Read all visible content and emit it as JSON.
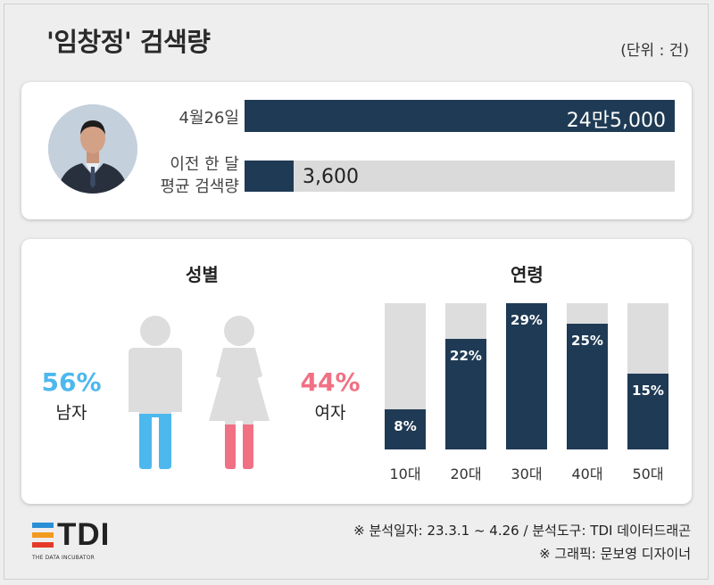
{
  "header": {
    "title": "'임창정' 검색량",
    "unit": "(단위 : 건)"
  },
  "search_volume": {
    "rows": [
      {
        "label_lines": [
          "4월26일"
        ],
        "value": 245000,
        "value_label": "24만5,000"
      },
      {
        "label_lines": [
          "이전 한 달",
          "평균 검색량"
        ],
        "value": 3600,
        "value_label": "3,600"
      }
    ]
  },
  "gender": {
    "title": "성별",
    "male": {
      "percent": 56,
      "percent_label": "56%",
      "label": "남자",
      "color": "#4db8ee"
    },
    "female": {
      "percent": 44,
      "percent_label": "44%",
      "label": "여자",
      "color": "#f07184"
    }
  },
  "age": {
    "title": "연령"
  },
  "chart_data": {
    "type": "bar",
    "title": "연령",
    "categories": [
      "10대",
      "20대",
      "30대",
      "40대",
      "50대"
    ],
    "values": [
      8,
      22,
      29,
      25,
      15
    ],
    "value_labels": [
      "8%",
      "22%",
      "29%",
      "25%",
      "15%"
    ],
    "ylim": [
      0,
      29
    ],
    "bar_color": "#1f3a54",
    "track_color": "#dddddd"
  },
  "footer": {
    "logo_text": "TDI",
    "logo_sub": "THE DATA INCUBATOR",
    "source_line1": "※ 분석일자: 23.3.1 ~ 4.26  / 분석도구: TDI 데이터드래곤",
    "source_line2": "※ 그래픽: 문보영 디자이너"
  }
}
